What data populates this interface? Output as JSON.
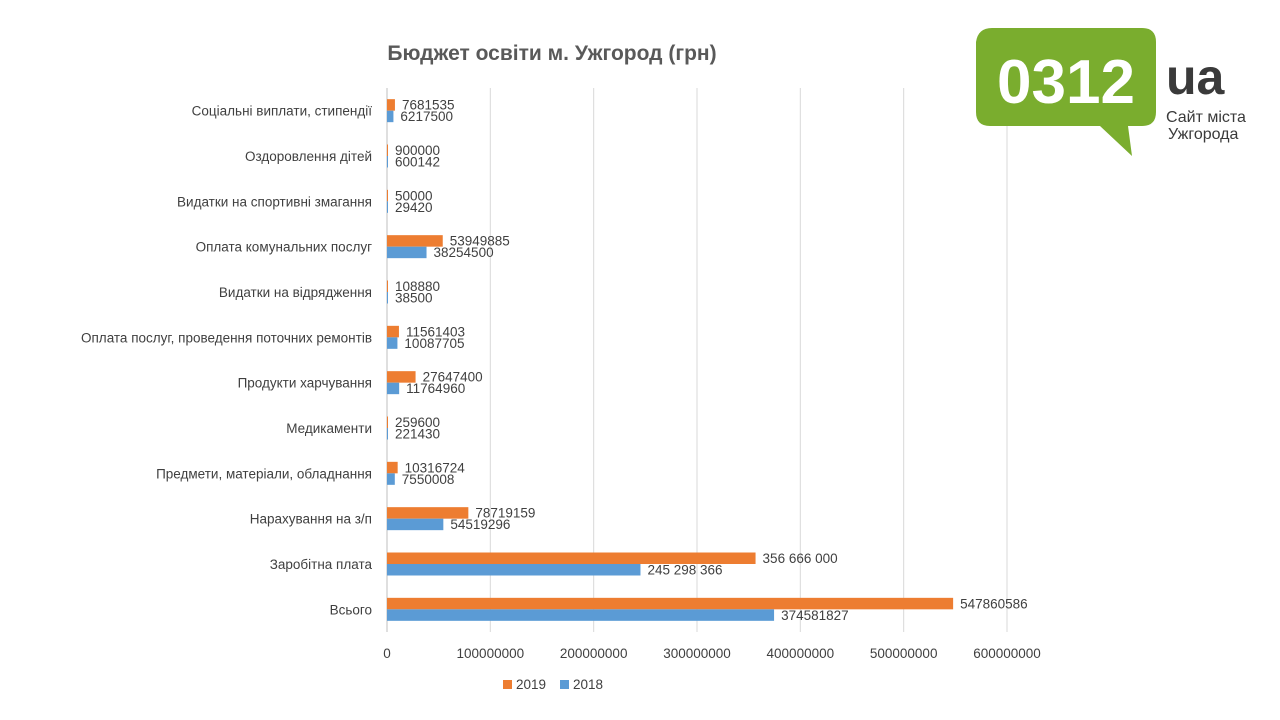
{
  "chart_data": {
    "type": "bar",
    "orientation": "horizontal",
    "title": "Бюджет освіти м. Ужгород (грн)",
    "categories": [
      "Соціальні   виплати, стипендії",
      "Оздоровлення дітей",
      "Видатки на спортивні змагання",
      "Оплата комунальних послуг",
      "Видатки на відрядження",
      "Оплата послуг, проведення поточних ремонтів",
      "Продукти  харчування",
      "Медикаменти",
      "Предмети, матеріали, обладнання",
      "Нарахування на з/п",
      "Заробітна плата",
      "Всього"
    ],
    "series": [
      {
        "name": "2019",
        "color": "#ED7D31",
        "values": [
          7681535,
          900000,
          50000,
          53949885,
          108880,
          11561403,
          27647400,
          259600,
          10316724,
          78719159,
          356666000,
          547860586
        ],
        "labels": [
          "7681535",
          "900000",
          "50000",
          "53949885",
          "108880",
          "11561403",
          "27647400",
          "259600",
          "10316724",
          "78719159",
          "356 666 000",
          "547860586"
        ]
      },
      {
        "name": "2018",
        "color": "#5B9BD5",
        "values": [
          6217500,
          600142,
          29420,
          38254500,
          38500,
          10087705,
          11764960,
          221430,
          7550008,
          54519296,
          245298366,
          374581827
        ],
        "labels": [
          "6217500",
          "600142",
          "29420",
          "38254500",
          "38500",
          "10087705",
          "11764960",
          "221430",
          "7550008",
          "54519296",
          "245 298 366",
          "374581827"
        ]
      }
    ],
    "xlim": [
      0,
      600000000
    ],
    "xticks": [
      0,
      100000000,
      200000000,
      300000000,
      400000000,
      500000000,
      600000000
    ],
    "xtick_labels": [
      "0",
      "100000000",
      "200000000",
      "300000000",
      "400000000",
      "500000000",
      "600000000"
    ],
    "grid": "vertical",
    "legend": "bottom",
    "legend_order": [
      "2019",
      "2018"
    ]
  },
  "logo": {
    "number": "0312",
    "suffix": "ua",
    "tagline_line1": "Сайт міста",
    "tagline_line2": "Ужгорода",
    "color": "#7AAD2E"
  }
}
